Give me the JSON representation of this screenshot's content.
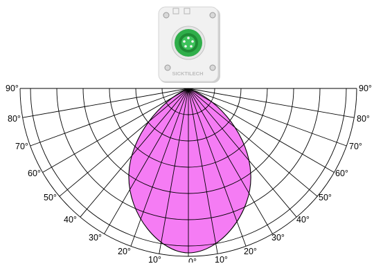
{
  "colors": {
    "beam_fill": "#f57cf4",
    "beam_stroke": "#000000",
    "grid_stroke": "#000000",
    "sensor_body": "#f1f1f1",
    "connector_green": "#2fae4a"
  },
  "icons": {
    "sensor": "sensor-device-icon",
    "connector": "m12-connector-icon"
  },
  "sensor": {
    "brand_text": "SICKTILECH"
  },
  "angle_labels": {
    "left": [
      "90°",
      "80°",
      "70°",
      "60°",
      "50°",
      "40°",
      "30°",
      "20°",
      "10°"
    ],
    "bottom": "0°",
    "right": [
      "10°",
      "20°",
      "30°",
      "40°",
      "50°",
      "60°",
      "70°",
      "80°",
      "90°"
    ]
  }
}
